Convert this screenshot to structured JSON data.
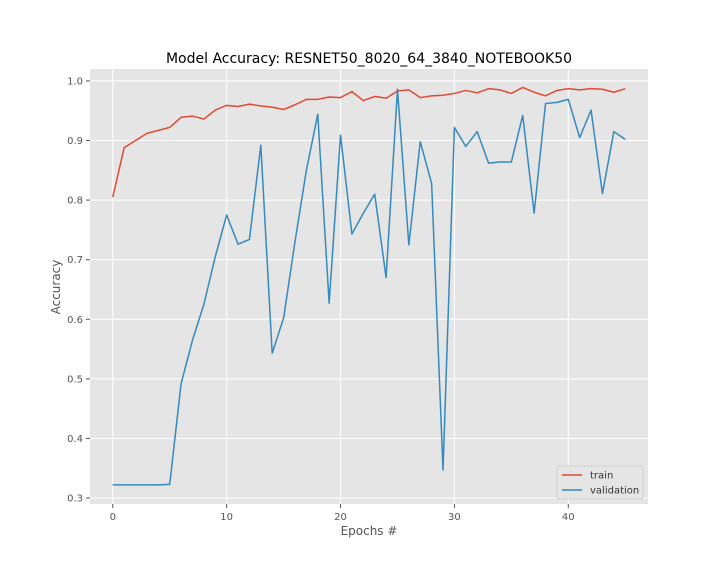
{
  "chart_data": {
    "type": "line",
    "title": "Model Accuracy: RESNET50_8020_64_3840_NOTEBOOK50",
    "xlabel": "Epochs #",
    "ylabel": "Accuracy",
    "xlim": [
      -2,
      47
    ],
    "ylim": [
      0.29,
      1.02
    ],
    "xticks": [
      0,
      10,
      20,
      30,
      40
    ],
    "yticks": [
      0.3,
      0.4,
      0.5,
      0.6,
      0.7,
      0.8,
      0.9,
      1.0
    ],
    "grid": true,
    "legend": "lower-right",
    "x": [
      0,
      1,
      2,
      3,
      4,
      5,
      6,
      7,
      8,
      9,
      10,
      11,
      12,
      13,
      14,
      15,
      16,
      17,
      18,
      19,
      20,
      21,
      22,
      23,
      24,
      25,
      26,
      27,
      28,
      29,
      30,
      31,
      32,
      33,
      34,
      35,
      36,
      37,
      38,
      39,
      40,
      41,
      42,
      43,
      44,
      45
    ],
    "series": [
      {
        "name": "train",
        "color": "#E24A33",
        "values": [
          0.805,
          0.888,
          0.9,
          0.912,
          0.917,
          0.922,
          0.939,
          0.941,
          0.936,
          0.951,
          0.959,
          0.957,
          0.961,
          0.958,
          0.956,
          0.952,
          0.96,
          0.969,
          0.969,
          0.973,
          0.972,
          0.982,
          0.967,
          0.974,
          0.971,
          0.983,
          0.985,
          0.972,
          0.975,
          0.976,
          0.979,
          0.984,
          0.98,
          0.987,
          0.985,
          0.979,
          0.989,
          0.981,
          0.975,
          0.984,
          0.987,
          0.985,
          0.987,
          0.986,
          0.981,
          0.987
        ]
      },
      {
        "name": "validation",
        "color": "#348ABD",
        "values": [
          0.322,
          0.322,
          0.322,
          0.322,
          0.322,
          0.323,
          0.492,
          0.565,
          0.625,
          0.705,
          0.775,
          0.726,
          0.734,
          0.892,
          0.543,
          0.602,
          0.73,
          0.85,
          0.944,
          0.627,
          0.909,
          0.743,
          0.778,
          0.81,
          0.67,
          0.986,
          0.725,
          0.898,
          0.828,
          0.347,
          0.922,
          0.89,
          0.915,
          0.862,
          0.864,
          0.864,
          0.942,
          0.778,
          0.962,
          0.964,
          0.969,
          0.905,
          0.951,
          0.811,
          0.915,
          0.902
        ]
      }
    ]
  }
}
